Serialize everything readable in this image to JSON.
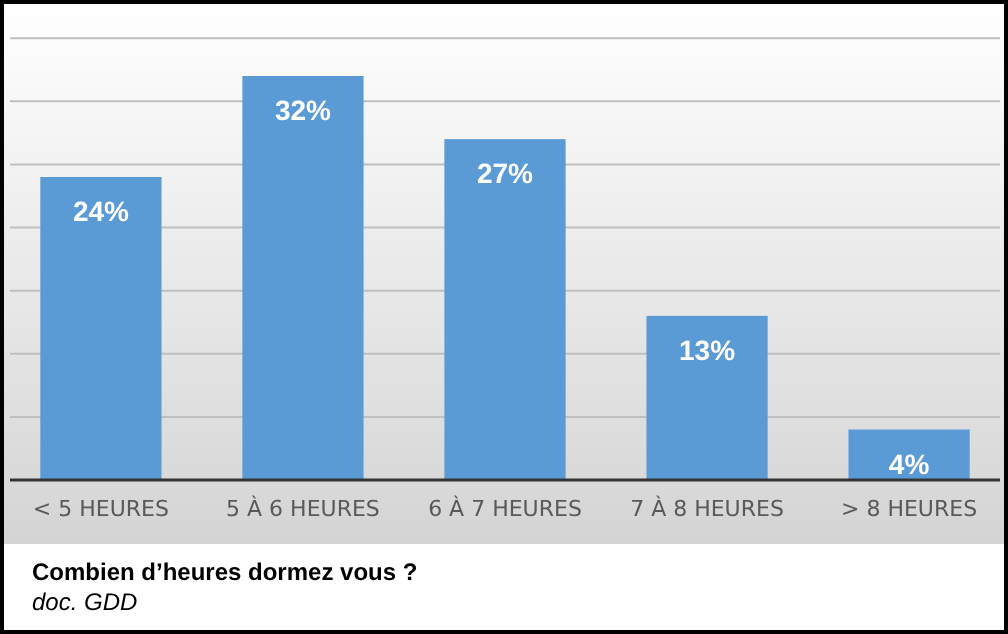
{
  "chart_data": {
    "type": "bar",
    "title": "Combien d’heures dormez vous ?",
    "annotations": [
      "doc. GDD"
    ],
    "categories": [
      "< 5 HEURES",
      "5 À 6 HEURES",
      "6 À 7 HEURES",
      "7 À 8 HEURES",
      "> 8 HEURES"
    ],
    "values": [
      24,
      32,
      27,
      13,
      4
    ],
    "color": "#5b9bd5",
    "value_labels": [
      "24%",
      "32%",
      "27%",
      "13%",
      "4%"
    ],
    "grid": true,
    "tick_labels": "x"
  }
}
